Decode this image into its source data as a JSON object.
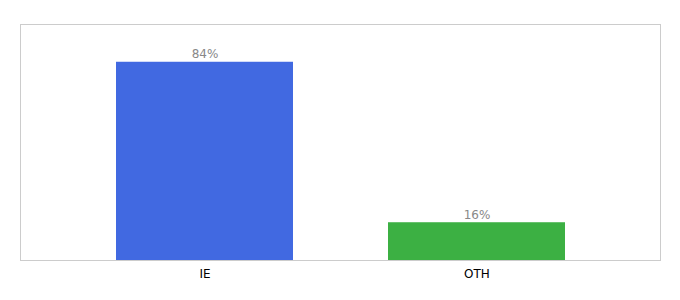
{
  "chart_data": {
    "type": "bar",
    "categories": [
      "IE",
      "OTH"
    ],
    "values": [
      84,
      16
    ],
    "colors": [
      "#4169E1",
      "#3CB043"
    ],
    "value_labels": [
      "84%",
      "16%"
    ],
    "data_labels": true,
    "ylim": [
      0,
      100
    ],
    "tick_labels": "x",
    "grid": false
  }
}
